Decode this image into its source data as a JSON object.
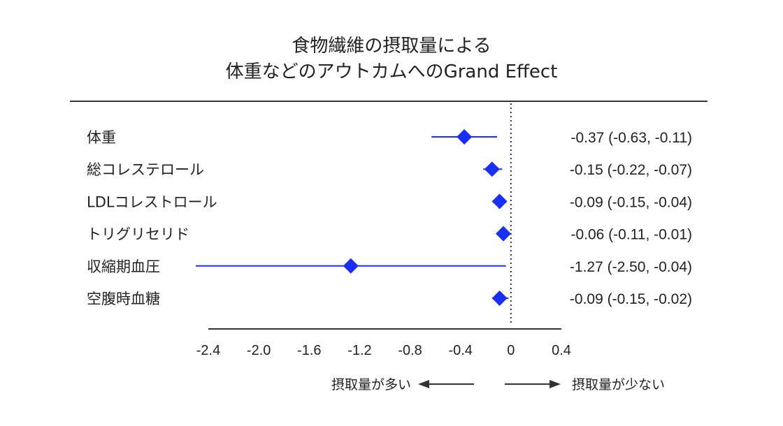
{
  "chart_data": {
    "type": "forest",
    "title": "食物繊維の摂取量による",
    "subtitle": "体重などのアウトカムへのGrand Effect",
    "xlim": [
      -2.4,
      0.4
    ],
    "xticks": [
      -2.4,
      -2.0,
      -1.6,
      -1.2,
      -0.8,
      -0.4,
      0,
      0.4
    ],
    "xtick_labels": [
      "-2.4",
      "-2.0",
      "-1.6",
      "-1.2",
      "-0.8",
      "-0.4",
      "0",
      "0.4"
    ],
    "reference_line": 0,
    "marker_color": "#1a2ff5",
    "rows": [
      {
        "label": "体重",
        "estimate": -0.37,
        "lower": -0.63,
        "upper": -0.11,
        "text": "-0.37 (-0.63, -0.11)"
      },
      {
        "label": "総コレステロール",
        "estimate": -0.15,
        "lower": -0.22,
        "upper": -0.07,
        "text": "-0.15 (-0.22, -0.07)"
      },
      {
        "label": "LDLコレストロール",
        "estimate": -0.09,
        "lower": -0.15,
        "upper": -0.04,
        "text": "-0.09 (-0.15, -0.04)"
      },
      {
        "label": "トリグリセリド",
        "estimate": -0.06,
        "lower": -0.11,
        "upper": -0.01,
        "text": "-0.06 (-0.11, -0.01)"
      },
      {
        "label": "収縮期血圧",
        "estimate": -1.27,
        "lower": -2.5,
        "upper": -0.04,
        "text": "-1.27 (-2.50, -0.04)"
      },
      {
        "label": "空腹時血糖",
        "estimate": -0.09,
        "lower": -0.15,
        "upper": -0.02,
        "text": "-0.09 (-0.15, -0.02)"
      }
    ],
    "direction_left": "摂取量が多い",
    "direction_right": "摂取量が少ない"
  }
}
